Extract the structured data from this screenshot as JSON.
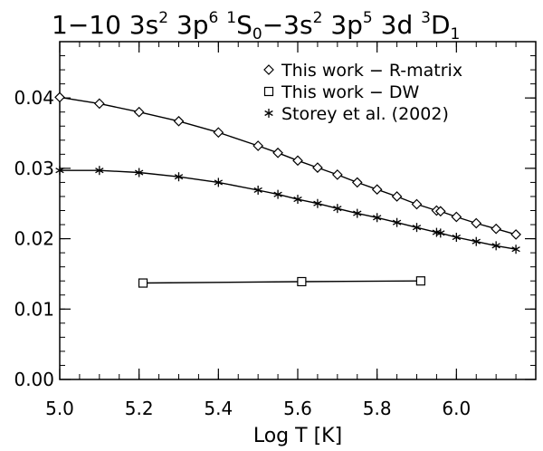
{
  "chart_data": {
    "type": "line",
    "title": {
      "prefix": "1−10 3s",
      "p1_sup": "2",
      "mid1": " 3p",
      "p2_sup": "6",
      "gap": " ",
      "term1_sup": "1",
      "term1": "S",
      "term1_sub": "0",
      "mid2": "−3s",
      "p3_sup": "2",
      "mid3": " 3p",
      "p4_sup": "5",
      "mid4": " 3d ",
      "term2_sup": "3",
      "term2": "D",
      "term2_sub": "1"
    },
    "xlabel": "Log T [K]",
    "ylabel": "",
    "xlim": [
      5.0,
      6.2
    ],
    "ylim": [
      0.0,
      0.048
    ],
    "xticks": [
      "5.0",
      "5.2",
      "5.4",
      "5.6",
      "5.8",
      "6.0"
    ],
    "xtick_values": [
      5.0,
      5.2,
      5.4,
      5.6,
      5.8,
      6.0
    ],
    "yticks": [
      "0.00",
      "0.01",
      "0.02",
      "0.03",
      "0.04"
    ],
    "ytick_values": [
      0.0,
      0.01,
      0.02,
      0.03,
      0.04
    ],
    "legend_position": "top-right",
    "series": [
      {
        "name": "This work − R-matrix",
        "marker": "diamond",
        "x": [
          5.0,
          5.1,
          5.2,
          5.3,
          5.4,
          5.5,
          5.55,
          5.6,
          5.65,
          5.7,
          5.75,
          5.8,
          5.85,
          5.9,
          5.95,
          5.96,
          6.0,
          6.05,
          6.1,
          6.15
        ],
        "y": [
          0.0401,
          0.0392,
          0.038,
          0.0367,
          0.0351,
          0.0332,
          0.0322,
          0.0311,
          0.0301,
          0.0291,
          0.028,
          0.027,
          0.026,
          0.0249,
          0.024,
          0.0239,
          0.0231,
          0.0222,
          0.0214,
          0.0206
        ]
      },
      {
        "name": "This work − DW",
        "marker": "square",
        "x": [
          5.21,
          5.61,
          5.91
        ],
        "y": [
          0.0137,
          0.0139,
          0.014
        ]
      },
      {
        "name": "Storey et al. (2002)",
        "marker": "asterisk",
        "x": [
          5.0,
          5.1,
          5.2,
          5.3,
          5.4,
          5.5,
          5.55,
          5.6,
          5.65,
          5.7,
          5.75,
          5.8,
          5.85,
          5.9,
          5.95,
          5.96,
          6.0,
          6.05,
          6.1,
          6.15
        ],
        "y": [
          0.0297,
          0.0297,
          0.0294,
          0.0288,
          0.028,
          0.0269,
          0.0263,
          0.0256,
          0.025,
          0.0243,
          0.0236,
          0.023,
          0.0223,
          0.0216,
          0.0209,
          0.0208,
          0.0202,
          0.0196,
          0.019,
          0.0185
        ]
      }
    ]
  }
}
